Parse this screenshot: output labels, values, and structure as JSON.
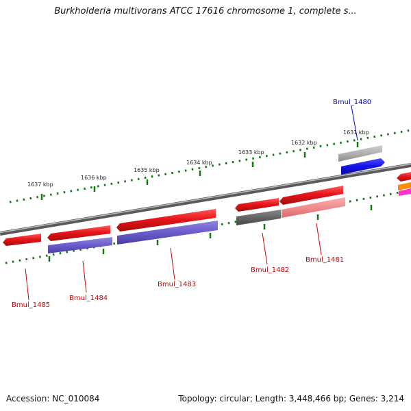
{
  "header": {
    "title": "Burkholderia multivorans ATCC 17616 chromosome 1, complete s..."
  },
  "footer": {
    "accession": "Accession: NC_010084",
    "summary": "Topology: circular; Length: 3,448,466 bp; Genes: 3,214"
  },
  "ticks": [
    "1637 kbp",
    "1636 kbp",
    "1635 kbp",
    "1634 kbp",
    "1633 kbp",
    "1632 kbp",
    "1631 kbp"
  ],
  "features": [
    "Bmul_1480",
    "Bmul_1481",
    "Bmul_1482",
    "Bmul_1483",
    "Bmul_1484",
    "Bmul_1485"
  ],
  "colors": {
    "cds": "#e8161c",
    "cds_light": "#ef8d8d",
    "blast_purple": "#6b5ccc",
    "blast_dark": "#666666",
    "blast_gray": "#aaaaaa",
    "blast_blue": "#1414e6",
    "orange": "#ff8c00",
    "magenta": "#ff33cc",
    "tick_green": "#117711",
    "backbone": "#808080",
    "label_red": "#cc0000",
    "label_blue": "#0000cc"
  }
}
